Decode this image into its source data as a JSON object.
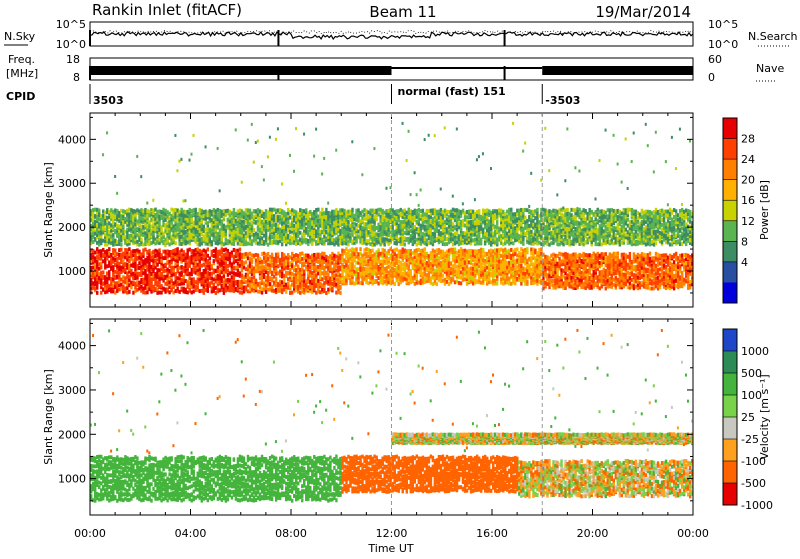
{
  "header": {
    "station": "Rankin Inlet (fitACF)",
    "beam": "Beam 11",
    "date": "19/Mar/2014"
  },
  "strip": {
    "nsky_label": "N.Sky",
    "nsky_ticks": [
      "10^5",
      "10^0"
    ],
    "nsearch_label": "N.Search",
    "nsearch_ticks": [
      "10^5",
      "10^0"
    ],
    "freq_label_1": "Freq.",
    "freq_label_2": "[MHz]",
    "freq_ticks": [
      "18",
      "8"
    ],
    "nave_label": "Nave",
    "nave_ticks": [
      "60",
      "0"
    ],
    "cpid_label": "CPID",
    "cpid_segments": [
      {
        "text": "3503",
        "start_hour": 0,
        "end_hour": 12
      },
      {
        "text": "normal (fast) 151",
        "start_hour": 12,
        "end_hour": 18
      },
      {
        "text": "-3503",
        "start_hour": 18,
        "end_hour": 24
      }
    ]
  },
  "x_axis": {
    "label": "Time UT",
    "ticks": [
      "00:00",
      "04:00",
      "08:00",
      "12:00",
      "16:00",
      "20:00",
      "00:00"
    ]
  },
  "chart_data": [
    {
      "type": "heatmap",
      "name": "power",
      "ylabel": "Slant Range [km]",
      "yticks": [
        "1000",
        "2000",
        "3000",
        "4000"
      ],
      "ylim": [
        180,
        4600
      ],
      "xlim_hours": [
        0,
        24
      ],
      "colorbar_label": "Power [dB]",
      "colorbar_ticks": [
        "28",
        "24",
        "20",
        "16",
        "12",
        "8",
        "4"
      ],
      "colorbar_colors": [
        "#e60000",
        "#ff4000",
        "#ff8000",
        "#ffb000",
        "#c8d200",
        "#5ab450",
        "#3c8c64",
        "#2850a0",
        "#0000dc"
      ],
      "approx_echo_bands": [
        {
          "hours": [
            0,
            6
          ],
          "range_km": [
            500,
            1500
          ],
          "power_db": 28
        },
        {
          "hours": [
            6,
            10
          ],
          "range_km": [
            500,
            1400
          ],
          "power_db": 24
        },
        {
          "hours": [
            10,
            18
          ],
          "range_km": [
            700,
            1500
          ],
          "power_db": 20
        },
        {
          "hours": [
            18,
            24
          ],
          "range_km": [
            600,
            1400
          ],
          "power_db": 24
        },
        {
          "hours": [
            0,
            24
          ],
          "range_km": [
            1600,
            2400
          ],
          "power_db": 10
        }
      ]
    },
    {
      "type": "heatmap",
      "name": "velocity",
      "ylabel": "Slant Range [km]",
      "yticks": [
        "1000",
        "2000",
        "3000",
        "4000"
      ],
      "ylim": [
        180,
        4600
      ],
      "xlim_hours": [
        0,
        24
      ],
      "colorbar_label": "Velocity [m s⁻¹]",
      "colorbar_ticks": [
        "1000",
        "500",
        "100",
        "25",
        "-25",
        "-100",
        "-500",
        "-1000"
      ],
      "colorbar_colors": [
        "#1e46c8",
        "#2d8c55",
        "#44b43c",
        "#78d24a",
        "#c8c8c0",
        "#ffa01e",
        "#ff6400",
        "#e60000"
      ],
      "approx_echo_bands": [
        {
          "hours": [
            0,
            10
          ],
          "range_km": [
            500,
            1500
          ],
          "velocity_ms": 300
        },
        {
          "hours": [
            10,
            17
          ],
          "range_km": [
            700,
            1500
          ],
          "velocity_ms": -300
        },
        {
          "hours": [
            17,
            24
          ],
          "range_km": [
            600,
            1400
          ],
          "velocity_ms": -20
        },
        {
          "hours": [
            12,
            24
          ],
          "range_km": [
            1800,
            2000
          ],
          "velocity_ms": 0
        }
      ]
    }
  ]
}
